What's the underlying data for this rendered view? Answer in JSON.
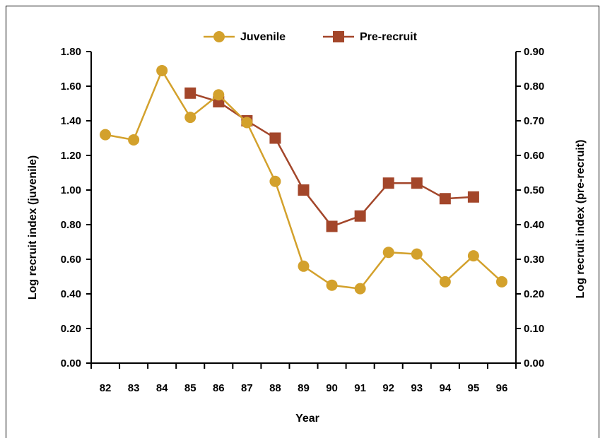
{
  "chart_data": {
    "type": "line",
    "xlabel": "Year",
    "ylabel_left": "Log recruit index (juvenile)",
    "ylabel_right": "Log recruit index (pre-recruit)",
    "categories": [
      "82",
      "83",
      "84",
      "85",
      "86",
      "87",
      "88",
      "89",
      "90",
      "91",
      "92",
      "93",
      "94",
      "95",
      "96"
    ],
    "y_left": {
      "range": [
        0,
        1.8
      ],
      "ticks": [
        "0.00",
        "0.20",
        "0.40",
        "0.60",
        "0.80",
        "1.00",
        "1.20",
        "1.40",
        "1.60",
        "1.80"
      ]
    },
    "y_right": {
      "range": [
        0,
        0.9
      ],
      "ticks": [
        "0.00",
        "0.10",
        "0.20",
        "0.30",
        "0.40",
        "0.50",
        "0.60",
        "0.70",
        "0.80",
        "0.90"
      ]
    },
    "legend_placement": "top-center",
    "grid": false,
    "series": [
      {
        "name": "Juvenile",
        "axis": "left",
        "marker": "circle",
        "color": "#d3a12c",
        "values": [
          1.32,
          1.29,
          1.69,
          1.42,
          1.55,
          1.39,
          1.05,
          0.56,
          0.45,
          0.43,
          0.64,
          0.63,
          0.47,
          0.62,
          0.47
        ]
      },
      {
        "name": "Pre-recruit",
        "axis": "right",
        "marker": "square",
        "color": "#a3462a",
        "values": [
          null,
          null,
          null,
          0.78,
          0.755,
          0.7,
          0.65,
          0.5,
          0.395,
          0.425,
          0.52,
          0.52,
          0.475,
          0.48,
          null
        ]
      }
    ]
  }
}
